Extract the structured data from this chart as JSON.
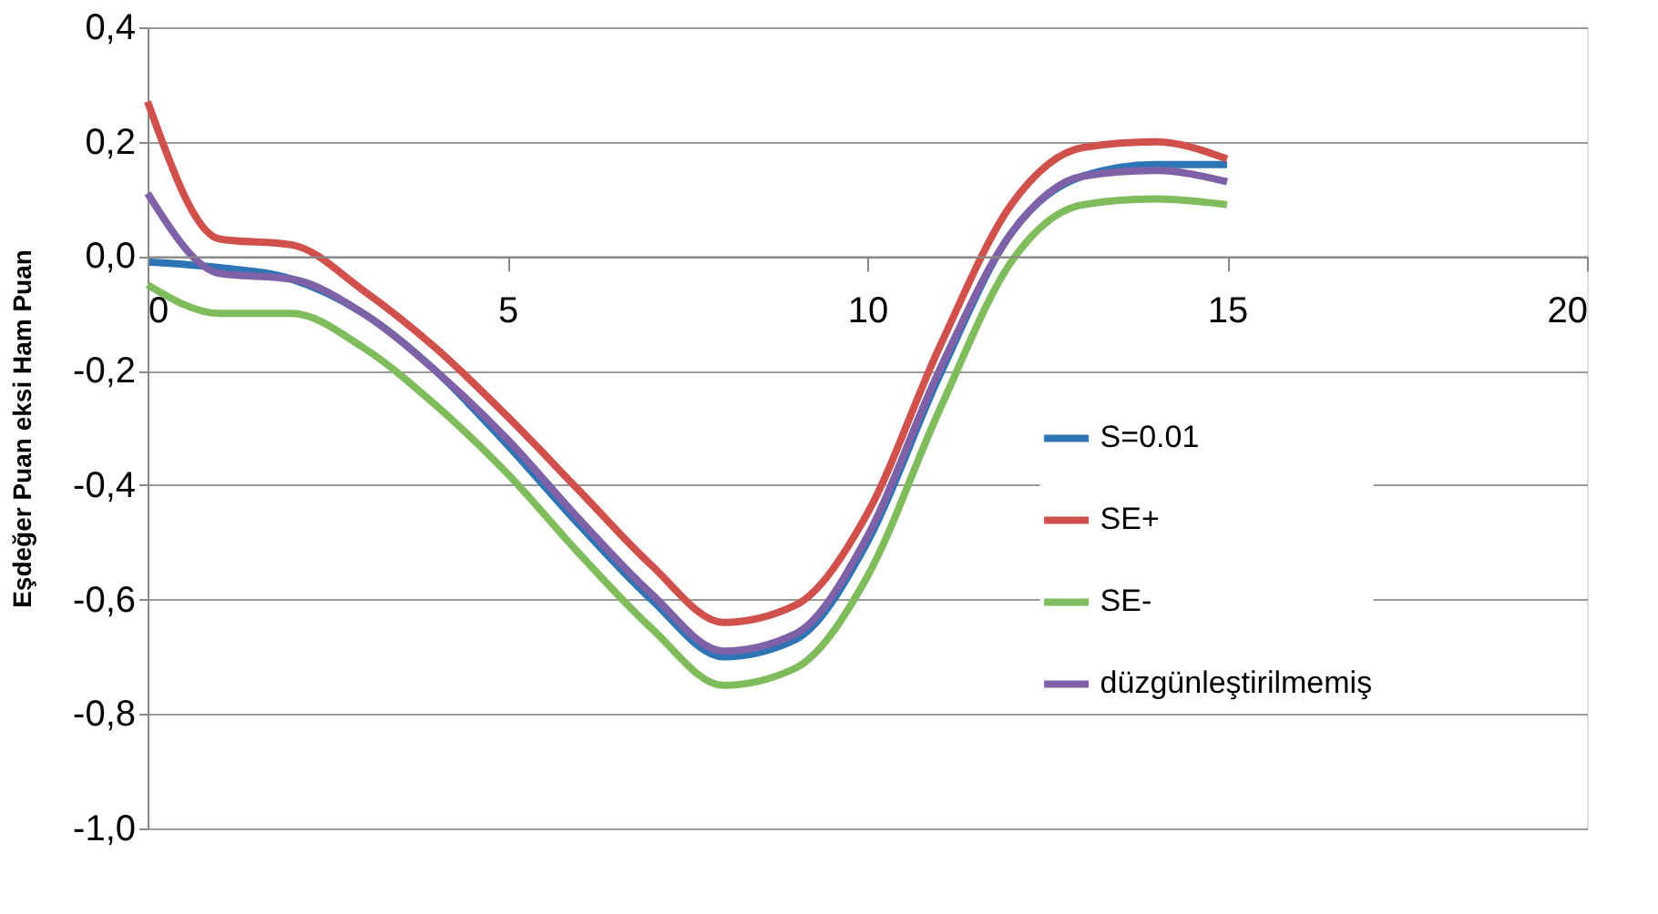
{
  "chart_data": {
    "type": "line",
    "ylabel": "Eşdeğer Puan eksi Ham Puan",
    "x": [
      0,
      1,
      2,
      3,
      4,
      5,
      6,
      7,
      8,
      9,
      10,
      11,
      12,
      13,
      14,
      15
    ],
    "series": [
      {
        "name": "S=0.01",
        "color": "#2e75b6",
        "values": [
          -0.01,
          -0.02,
          -0.04,
          -0.1,
          -0.2,
          -0.33,
          -0.47,
          -0.6,
          -0.7,
          -0.67,
          -0.5,
          -0.21,
          0.04,
          0.14,
          0.16,
          0.16
        ]
      },
      {
        "name": "SE+",
        "color": "#d0504c",
        "values": [
          0.27,
          0.03,
          0.02,
          -0.06,
          -0.16,
          -0.28,
          -0.41,
          -0.54,
          -0.64,
          -0.61,
          -0.45,
          -0.16,
          0.09,
          0.19,
          0.2,
          0.17
        ]
      },
      {
        "name": "SE-",
        "color": "#7fbc5b",
        "values": [
          -0.05,
          -0.1,
          -0.1,
          -0.16,
          -0.26,
          -0.38,
          -0.52,
          -0.65,
          -0.75,
          -0.72,
          -0.56,
          -0.27,
          -0.01,
          0.09,
          0.1,
          0.09
        ]
      },
      {
        "name": "düzgünleştirilmemiş",
        "color": "#7f61a7",
        "values": [
          0.11,
          -0.03,
          -0.04,
          -0.1,
          -0.2,
          -0.32,
          -0.46,
          -0.59,
          -0.69,
          -0.66,
          -0.49,
          -0.2,
          0.04,
          0.14,
          0.15,
          0.13
        ]
      }
    ],
    "xlim": [
      0,
      20
    ],
    "xticks": [
      0,
      5,
      10,
      15,
      20
    ],
    "ylim": [
      -1.0,
      0.4
    ],
    "yticks": [
      {
        "value": -1.0,
        "label": "-1,0"
      },
      {
        "value": -0.8,
        "label": "-0,8"
      },
      {
        "value": -0.6,
        "label": "-0,6"
      },
      {
        "value": -0.4,
        "label": "-0,4"
      },
      {
        "value": -0.2,
        "label": "-0,2"
      },
      {
        "value": 0.0,
        "label": "0,0"
      },
      {
        "value": 0.2,
        "label": "0,2"
      },
      {
        "value": 0.4,
        "label": "0,4"
      }
    ],
    "grid": "y",
    "legend": "right",
    "marker": "none",
    "line_style": "solid"
  }
}
